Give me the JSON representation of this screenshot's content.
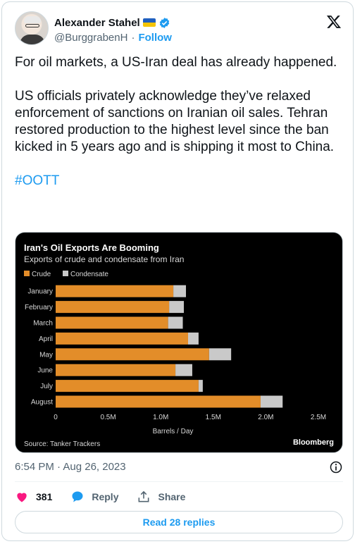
{
  "author": {
    "name": "Alexander Stahel",
    "handle": "@BurggrabenH",
    "separator": "·",
    "follow_label": "Follow"
  },
  "tweet": {
    "paragraph1": "For oil markets, a US-Iran deal has already happened.",
    "paragraph2": "US officials privately acknowledge they’ve relaxed enforcement of sanctions on Iranian oil sales. Tehran restored production to the highest level since the ban kicked in 5 years ago and is shipping it most to China.",
    "hashtag": "#OOTT"
  },
  "chart_data": {
    "type": "bar",
    "orientation": "horizontal",
    "stacked": true,
    "title": "Iran's Oil Exports Are Booming",
    "subtitle": "Exports of crude and condensate from Iran",
    "categories": [
      "January",
      "February",
      "March",
      "April",
      "May",
      "June",
      "July",
      "August"
    ],
    "series": [
      {
        "name": "Crude",
        "color": "#e38d29",
        "values": [
          1.12,
          1.08,
          1.07,
          1.26,
          1.46,
          1.14,
          1.36,
          1.95
        ]
      },
      {
        "name": "Condensate",
        "color": "#c9c9c9",
        "values": [
          0.12,
          0.14,
          0.14,
          0.1,
          0.21,
          0.16,
          0.04,
          0.21
        ]
      }
    ],
    "xlabel": "Barrels / Day",
    "xticks": [
      "0",
      "0.5M",
      "1.0M",
      "1.5M",
      "2.0M",
      "2.5M"
    ],
    "xlim": [
      0,
      2.5
    ],
    "legend_position": "top-left",
    "source": "Source: Tanker Trackers",
    "brand": "Bloomberg"
  },
  "meta": {
    "timestamp": "6:54 PM · Aug 26, 2023"
  },
  "actions": {
    "likes": "381",
    "reply_label": "Reply",
    "share_label": "Share"
  },
  "read_replies_label": "Read 28 replies",
  "colors": {
    "accent": "#1d9bf0",
    "like": "#f91880",
    "muted": "#536471"
  }
}
